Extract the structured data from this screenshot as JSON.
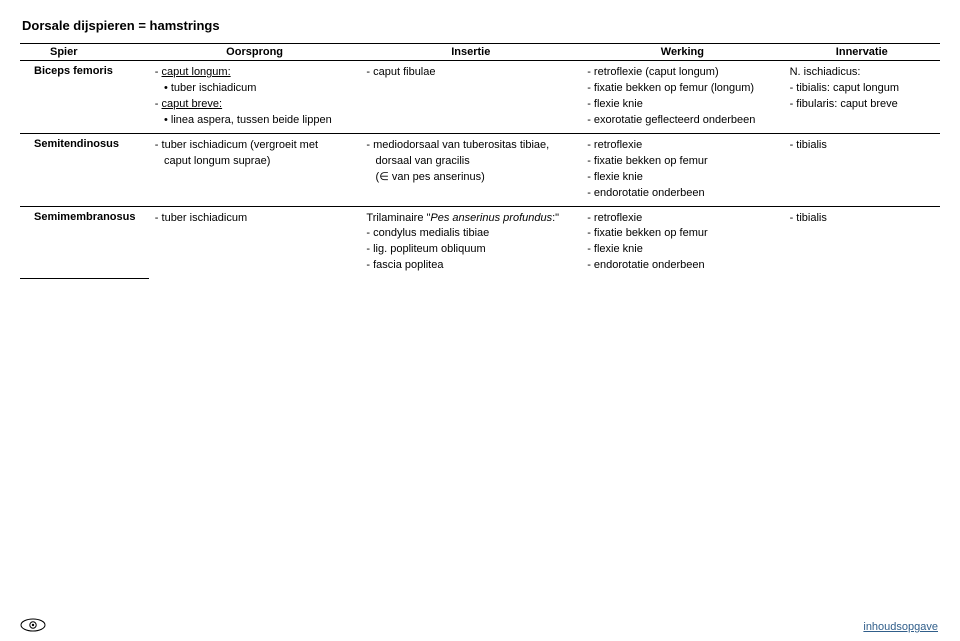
{
  "page_title": "Dorsale dijspieren = hamstrings",
  "headers": [
    "Spier",
    "Oorsprong",
    "Insertie",
    "Werking",
    "Innervatie"
  ],
  "rows": [
    {
      "spier": "Biceps femoris",
      "oorsprong": [
        {
          "t": "- caput longum:",
          "u": true,
          "indent": 0
        },
        {
          "t": "• tuber ischiadicum",
          "indent": 1
        },
        {
          "t": "- caput breve:",
          "u": true,
          "indent": 0
        },
        {
          "t": "• linea aspera, tussen beide lippen",
          "indent": 1
        }
      ],
      "insertie": [
        {
          "t": "- caput fibulae",
          "indent": 0
        }
      ],
      "werking": [
        {
          "t": "- retroflexie (caput longum)",
          "indent": 0
        },
        {
          "t": "- fixatie bekken op femur (longum)",
          "indent": 0
        },
        {
          "t": "- flexie knie",
          "indent": 0
        },
        {
          "t": "- exorotatie geflecteerd onderbeen",
          "indent": 0
        }
      ],
      "innervatie": [
        {
          "t": "N. ischiadicus:",
          "indent": 0
        },
        {
          "t": "- tibialis: caput longum",
          "indent": 0
        },
        {
          "t": "- fibularis: caput breve",
          "indent": 0
        }
      ]
    },
    {
      "spier": "Semitendinosus",
      "oorsprong": [
        {
          "t": "- tuber ischiadicum (vergroeit met",
          "indent": 0
        },
        {
          "t": "caput longum suprae)",
          "indent": 1
        }
      ],
      "insertie": [
        {
          "t": "- mediodorsaal van tuberositas tibiae,",
          "indent": 0
        },
        {
          "t": "dorsaal van gracilis",
          "indent": 1
        },
        {
          "t": "(∈ van pes anserinus)",
          "indent": 1
        }
      ],
      "werking": [
        {
          "t": "- retroflexie",
          "indent": 0
        },
        {
          "t": "- fixatie bekken op femur",
          "indent": 0
        },
        {
          "t": "- flexie knie",
          "indent": 0
        },
        {
          "t": "- endorotatie onderbeen",
          "indent": 0
        }
      ],
      "innervatie": [
        {
          "t": "- tibialis",
          "indent": 0
        }
      ]
    },
    {
      "spier": "Semimembranosus",
      "oorsprong": [
        {
          "t": "- tuber ischiadicum",
          "indent": 0
        }
      ],
      "insertie_italic_first": true,
      "insertie": [
        {
          "t": "Trilaminaire \"Pes anserinus profundus:\"",
          "indent": 0
        },
        {
          "t": "- condylus medialis tibiae",
          "indent": 0
        },
        {
          "t": "- lig. popliteum obliquum",
          "indent": 0
        },
        {
          "t": "- fascia poplitea",
          "indent": 0
        }
      ],
      "werking": [
        {
          "t": "- retroflexie",
          "indent": 0
        },
        {
          "t": "- fixatie bekken op femur",
          "indent": 0
        },
        {
          "t": "- flexie knie",
          "indent": 0
        },
        {
          "t": "- endorotatie onderbeen",
          "indent": 0
        }
      ],
      "innervatie": [
        {
          "t": "- tibialis",
          "indent": 0
        }
      ]
    }
  ],
  "footer_link": "inhoudsopgave",
  "colors": {
    "link": "#305e8a",
    "border": "#000000"
  }
}
